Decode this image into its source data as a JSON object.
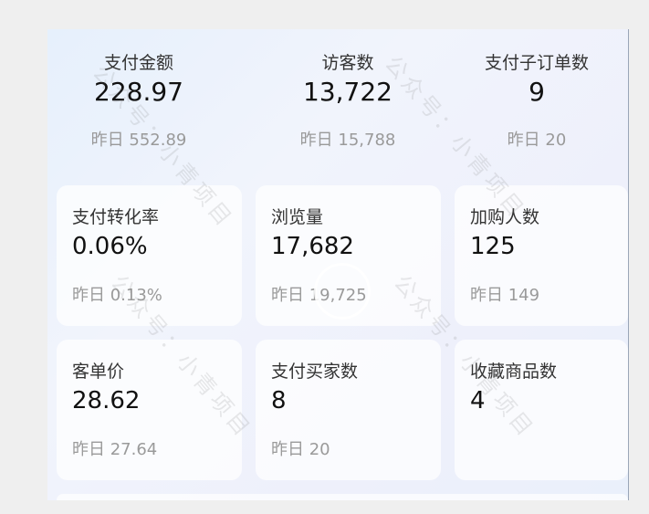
{
  "top_stats": [
    {
      "label": "支付金额",
      "value": "228.97",
      "prev": "昨日 552.89"
    },
    {
      "label": "访客数",
      "value": "13,722",
      "prev": "昨日 15,788"
    },
    {
      "label": "支付子订单数",
      "value": "9",
      "prev": "昨日 20"
    }
  ],
  "cards": [
    {
      "label": "支付转化率",
      "value": "0.06%",
      "prev": "昨日 0.13%"
    },
    {
      "label": "浏览量",
      "value": "17,682",
      "prev": "昨日 19,725"
    },
    {
      "label": "加购人数",
      "value": "125",
      "prev": "昨日 149"
    },
    {
      "label": "客单价",
      "value": "28.62",
      "prev": "昨日 27.64"
    },
    {
      "label": "支付买家数",
      "value": "8",
      "prev": "昨日 20"
    },
    {
      "label": "收藏商品数",
      "value": "4",
      "prev": ""
    }
  ],
  "watermark": "公众号：小青项目"
}
